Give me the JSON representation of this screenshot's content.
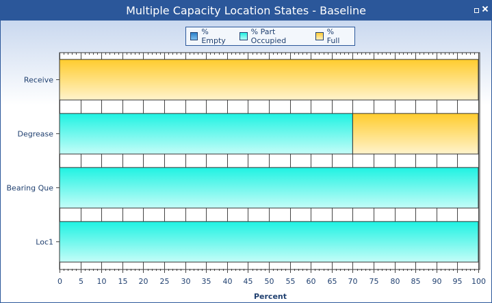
{
  "window": {
    "title": "Multiple Capacity Location States - Baseline"
  },
  "colors": {
    "titlebar": "#2b579a",
    "empty": "#3a8fd8",
    "part": "#2ef5e6",
    "full": "#ffd040"
  },
  "chart_data": {
    "type": "bar",
    "orientation": "horizontal",
    "stacked": true,
    "title": "Multiple Capacity Location States - Baseline",
    "xlabel": "Percent",
    "ylabel": "",
    "xlim": [
      0,
      100
    ],
    "x_ticks": [
      "0",
      "5",
      "10",
      "15",
      "20",
      "25",
      "30",
      "35",
      "40",
      "45",
      "50",
      "55",
      "60",
      "65",
      "70",
      "75",
      "80",
      "85",
      "90",
      "95",
      "100"
    ],
    "categories": [
      "Receive",
      "Degrease",
      "Bearing Que",
      "Loc1"
    ],
    "series": [
      {
        "name": "% Empty",
        "values": [
          0,
          0,
          0,
          0
        ]
      },
      {
        "name": "% Part Occupied",
        "values": [
          0,
          70,
          100,
          100
        ]
      },
      {
        "name": "% Full",
        "values": [
          100,
          30,
          0,
          0
        ]
      }
    ],
    "legend_position": "top-center",
    "grid": true
  }
}
